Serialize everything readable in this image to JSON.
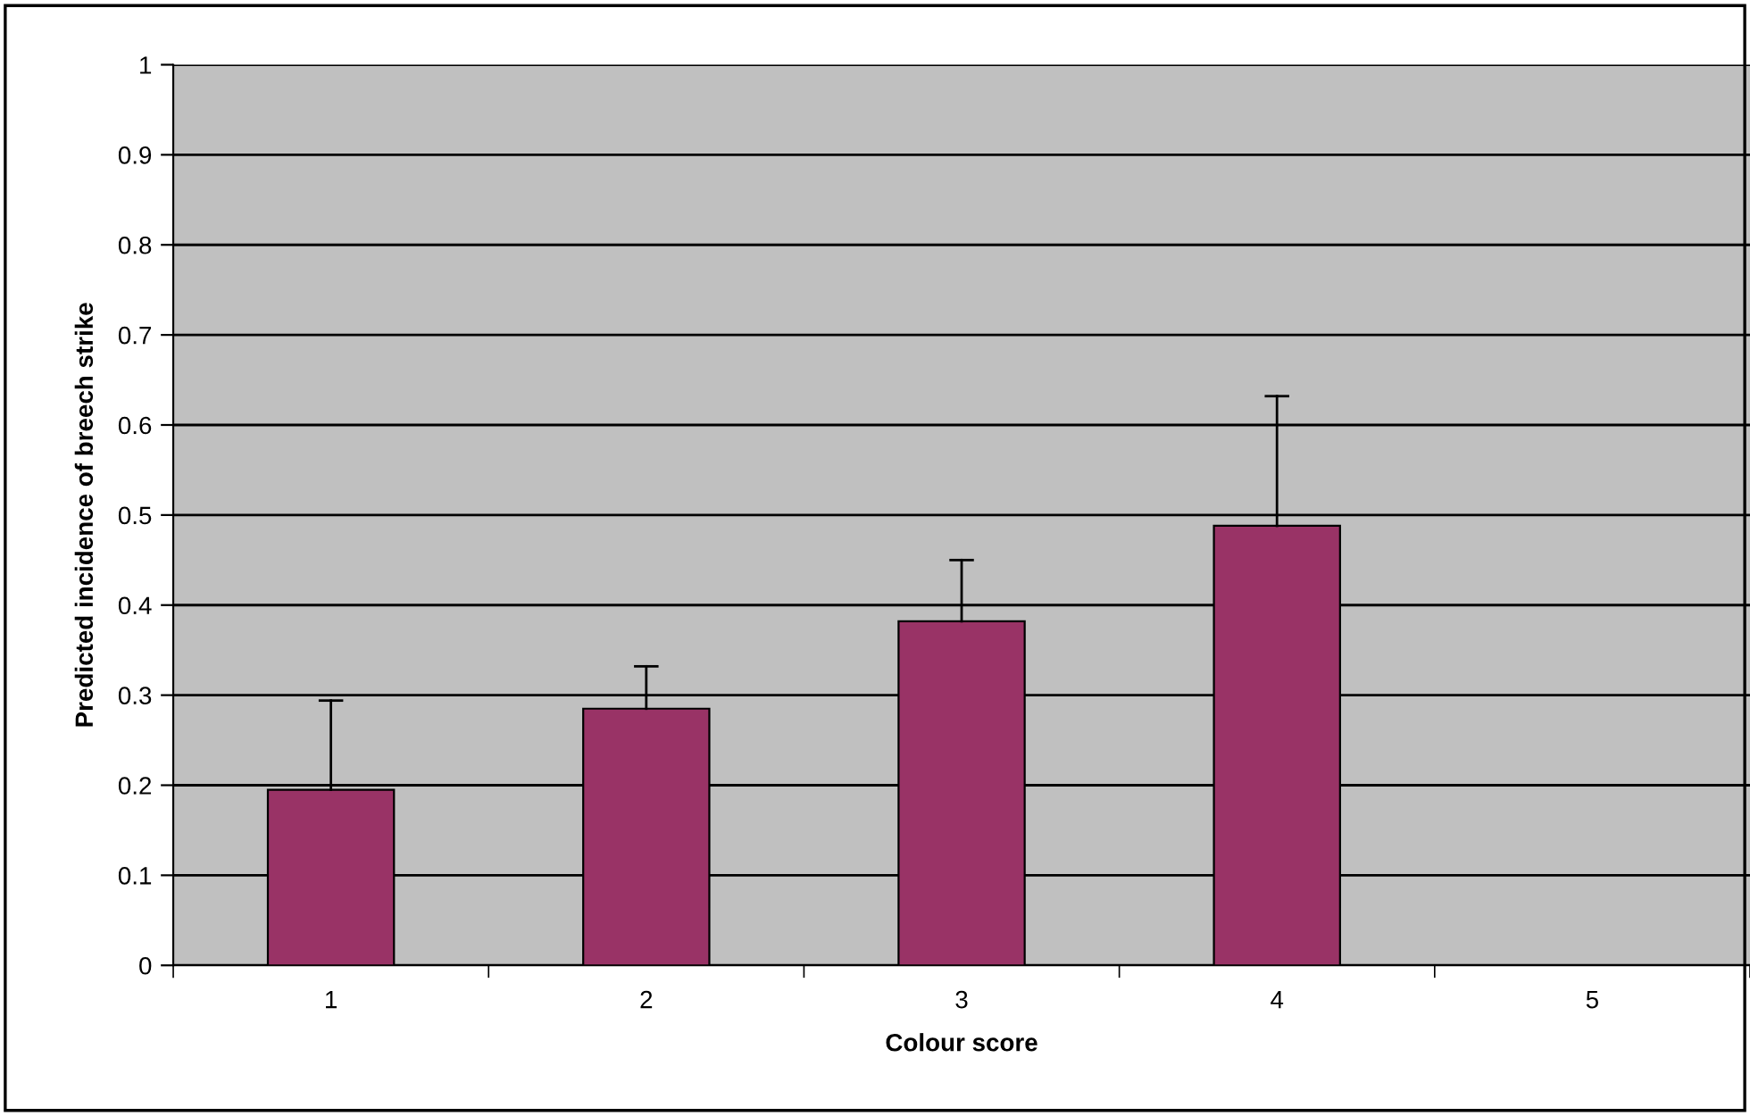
{
  "chart_data": {
    "type": "bar",
    "xlabel": "Colour score",
    "ylabel": "Predicted incidence of breech strike",
    "categories": [
      "1",
      "2",
      "3",
      "4",
      "5"
    ],
    "values": [
      0.195,
      0.285,
      0.382,
      0.488,
      null
    ],
    "errors": [
      [
        0.195,
        0.294
      ],
      [
        0.285,
        0.332
      ],
      [
        0.382,
        0.45
      ],
      [
        0.488,
        0.632
      ],
      null
    ],
    "color": "#993366",
    "ylim": [
      0,
      1
    ],
    "yticks": [
      0,
      0.1,
      0.2,
      0.3,
      0.4,
      0.5,
      0.6,
      0.7,
      0.8,
      0.9,
      1
    ],
    "grid": "y",
    "legend": false
  }
}
